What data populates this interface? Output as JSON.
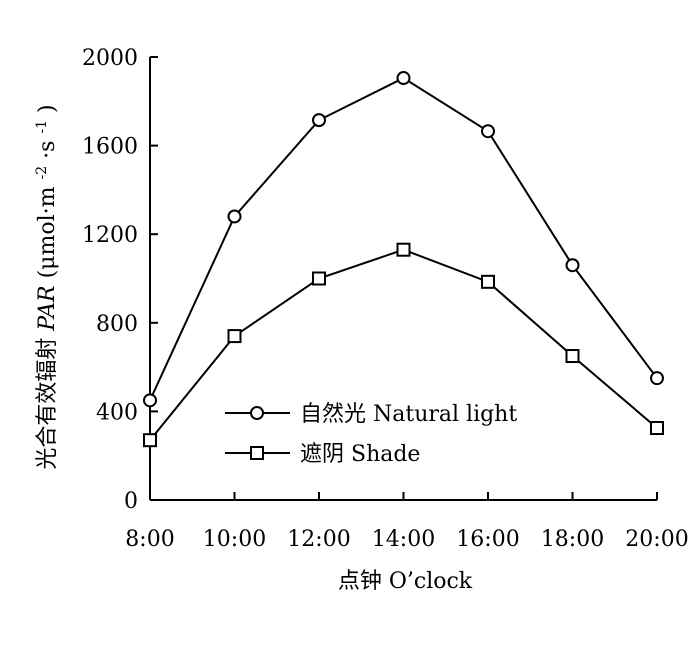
{
  "chart_data": {
    "type": "line",
    "title": "",
    "xlabel": "点钟 O’clock",
    "ylabel": {
      "prefix": "光合有效辐射 ",
      "italic": "PAR",
      "unit": " (μmol·m",
      "exp1": "-2",
      "mid": "·s",
      "exp2": "-1",
      "close": ")"
    },
    "categories": [
      "8:00",
      "10:00",
      "12:00",
      "14:00",
      "16:00",
      "18:00",
      "20:00"
    ],
    "ylim": [
      0,
      2000
    ],
    "yticks": [
      0,
      400,
      800,
      1200,
      1600,
      2000
    ],
    "ytick_labels": [
      "0",
      "400",
      "800",
      "1200",
      "1600",
      "2000"
    ],
    "grid": false,
    "legend_position": "lower-center",
    "series": [
      {
        "name": "自然光 Natural light",
        "marker": "circle",
        "values": [
          450,
          1280,
          1715,
          1905,
          1665,
          1060,
          550
        ]
      },
      {
        "name": "遮阴 Shade",
        "marker": "square",
        "values": [
          270,
          740,
          1000,
          1130,
          985,
          650,
          325
        ]
      }
    ]
  }
}
